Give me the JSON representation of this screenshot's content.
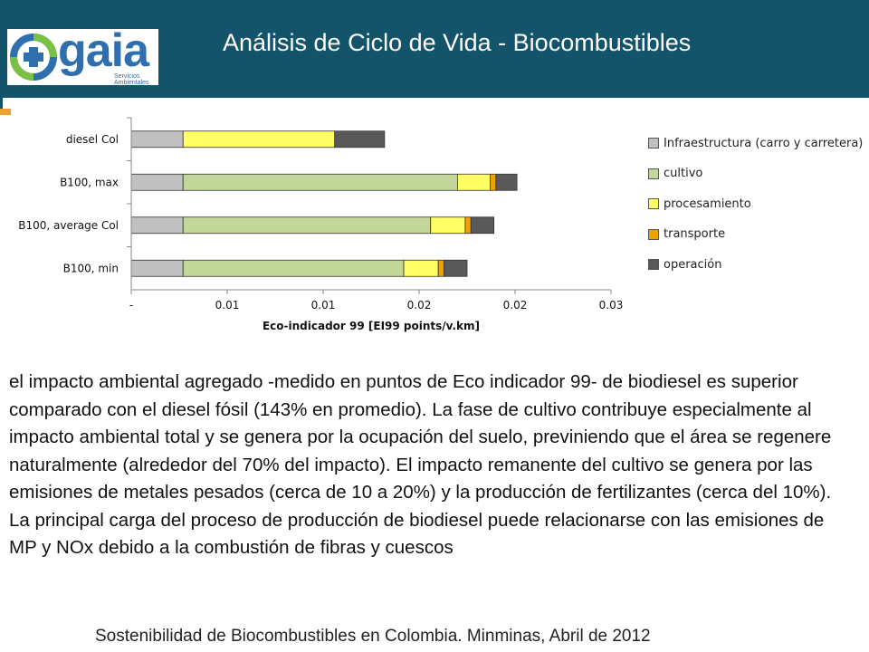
{
  "header": {
    "title": "Análisis de Ciclo de Vida - Biocombustibles",
    "logo_text": "gaia",
    "logo_subtext": "Servicios Ambientales",
    "bg_color": "#13546b"
  },
  "chart_data": {
    "type": "bar",
    "orientation": "horizontal",
    "stacked": true,
    "categories": [
      "diesel Col",
      "B100, max",
      "B100, average Col",
      "B100, min"
    ],
    "series": [
      {
        "name": "Infraestructura (carro y carretera)",
        "color": "#c0c0c0",
        "values": [
          0.0027,
          0.0027,
          0.0027,
          0.0027
        ]
      },
      {
        "name": "cultivo",
        "color": "#c4d79b",
        "values": [
          0,
          0.0143,
          0.0129,
          0.0115
        ]
      },
      {
        "name": "procesamiento",
        "color": "#ffff66",
        "values": [
          0.0079,
          0.0017,
          0.0018,
          0.0018
        ]
      },
      {
        "name": "transporte",
        "color": "#f0a000",
        "values": [
          0,
          0.0003,
          0.0003,
          0.0003
        ]
      },
      {
        "name": "operación",
        "color": "#595959",
        "values": [
          0.0026,
          0.0011,
          0.0012,
          0.0012
        ]
      }
    ],
    "xlim": [
      0,
      0.025
    ],
    "x_ticks": [
      0,
      0.005,
      0.01,
      0.015,
      0.02,
      0.025
    ],
    "x_tick_labels": [
      "-",
      "0.01",
      "0.01",
      "0.02",
      "0.02",
      "0.03"
    ],
    "xlabel": "Eco-indicador 99 [EI99 points/v.km]",
    "legend_position": "right",
    "grid": false
  },
  "body_text": "el impacto ambiental agregado -medido en puntos de Eco indicador 99- de biodiesel es superior comparado con el diesel fósil (143% en promedio). La fase de cultivo contribuye especialmente al impacto ambiental total y se genera por la ocupación del suelo, previniendo que el área se regenere naturalmente (alrededor del 70% del impacto). El impacto remanente del cultivo se genera por las emisiones de metales pesados (cerca de 10 a 20%) y la producción de fertilizantes (cerca del 10%). La principal carga del proceso de producción de biodiesel puede relacionarse con las emisiones de MP y NOx debido a la combustión de fibras y cuescos",
  "footer": "Sostenibilidad de Biocombustibles en Colombia. Minminas, Abril de 2012"
}
